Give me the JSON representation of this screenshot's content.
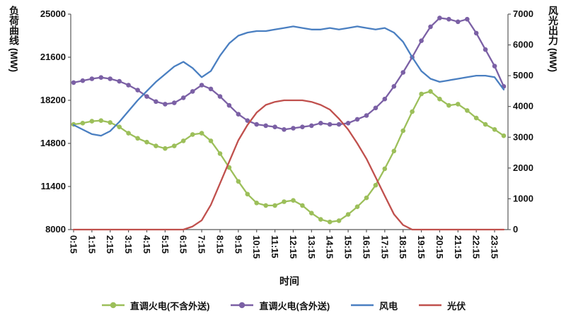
{
  "chart_data": {
    "type": "line",
    "title": "",
    "xlabel": "时间",
    "grid": false,
    "background": "#ffffff",
    "legend_position": "bottom",
    "left_axis": {
      "title": "负荷曲线 (MW)",
      "min": 8000,
      "max": 25000,
      "ticks": [
        8000,
        11400,
        14800,
        18200,
        21600,
        25000
      ]
    },
    "right_axis": {
      "title": "风光出力 (MW)",
      "min": 0,
      "max": 7000,
      "ticks": [
        0,
        1000,
        2000,
        3000,
        4000,
        5000,
        6000,
        7000
      ]
    },
    "x_tick_labels": [
      "0:15",
      "1:15",
      "2:15",
      "3:15",
      "4:15",
      "5:15",
      "6:15",
      "7:15",
      "8:15",
      "9:15",
      "10:15",
      "11:15",
      "12:15",
      "13:15",
      "14:15",
      "15:15",
      "16:15",
      "17:15",
      "18:15",
      "19:15",
      "20:15",
      "21:15",
      "22:15",
      "23:15"
    ],
    "x_hours": [
      0.25,
      0.75,
      1.25,
      1.75,
      2.25,
      2.75,
      3.25,
      3.75,
      4.25,
      4.75,
      5.25,
      5.75,
      6.25,
      6.75,
      7.25,
      7.75,
      8.25,
      8.75,
      9.25,
      9.75,
      10.25,
      10.75,
      11.25,
      11.75,
      12.25,
      12.75,
      13.25,
      13.75,
      14.25,
      14.75,
      15.25,
      15.75,
      16.25,
      16.75,
      17.25,
      17.75,
      18.25,
      18.75,
      19.25,
      19.75,
      20.25,
      20.75,
      21.25,
      21.75,
      22.25,
      22.75,
      23.25,
      23.75
    ],
    "series": [
      {
        "id": "thermal-excl-export",
        "name": "直调火电(不含外送)",
        "axis": "left",
        "color": "#9cbf5a",
        "marker": true,
        "values": [
          16300,
          16400,
          16550,
          16600,
          16450,
          16100,
          15600,
          15200,
          14900,
          14600,
          14400,
          14600,
          15000,
          15500,
          15600,
          15000,
          14000,
          12900,
          11800,
          10800,
          10100,
          9900,
          9900,
          10200,
          10300,
          9900,
          9300,
          8800,
          8600,
          8700,
          9200,
          9800,
          10500,
          11500,
          12800,
          14200,
          15800,
          17300,
          18700,
          18900,
          18300,
          17800,
          17900,
          17400,
          16800,
          16300,
          15900,
          15400
        ]
      },
      {
        "id": "thermal-incl-export",
        "name": "直调火电(含外送)",
        "axis": "left",
        "color": "#7b60a5",
        "marker": true,
        "values": [
          19600,
          19750,
          19900,
          20000,
          19900,
          19700,
          19400,
          19000,
          18500,
          18100,
          17900,
          18000,
          18400,
          18900,
          19400,
          19100,
          18500,
          17800,
          17100,
          16600,
          16300,
          16200,
          16100,
          15900,
          16000,
          16100,
          16200,
          16400,
          16300,
          16300,
          16400,
          16700,
          17000,
          17600,
          18300,
          19300,
          20400,
          21600,
          22900,
          24000,
          24700,
          24600,
          24400,
          24600,
          23500,
          22200,
          20900,
          19300
        ]
      },
      {
        "id": "wind",
        "name": "风电",
        "axis": "right",
        "color": "#4a7fc1",
        "marker": false,
        "values": [
          3400,
          3250,
          3100,
          3050,
          3200,
          3500,
          3850,
          4200,
          4500,
          4800,
          5050,
          5300,
          5450,
          5250,
          4950,
          5150,
          5650,
          6050,
          6300,
          6400,
          6450,
          6450,
          6500,
          6550,
          6600,
          6550,
          6500,
          6500,
          6550,
          6500,
          6550,
          6600,
          6550,
          6500,
          6550,
          6400,
          6100,
          5600,
          5150,
          4900,
          4800,
          4850,
          4900,
          4950,
          5000,
          5000,
          4950,
          4550
        ]
      },
      {
        "id": "solar",
        "name": "光伏",
        "axis": "right",
        "color": "#c0504d",
        "marker": false,
        "values": [
          0,
          0,
          0,
          0,
          0,
          0,
          0,
          0,
          0,
          0,
          0,
          0,
          0,
          100,
          300,
          800,
          1500,
          2200,
          2900,
          3400,
          3800,
          4050,
          4150,
          4200,
          4200,
          4200,
          4150,
          4050,
          3900,
          3600,
          3250,
          2800,
          2300,
          1700,
          1100,
          500,
          150,
          0,
          0,
          0,
          0,
          0,
          0,
          0,
          0,
          0,
          0,
          0
        ]
      }
    ]
  }
}
